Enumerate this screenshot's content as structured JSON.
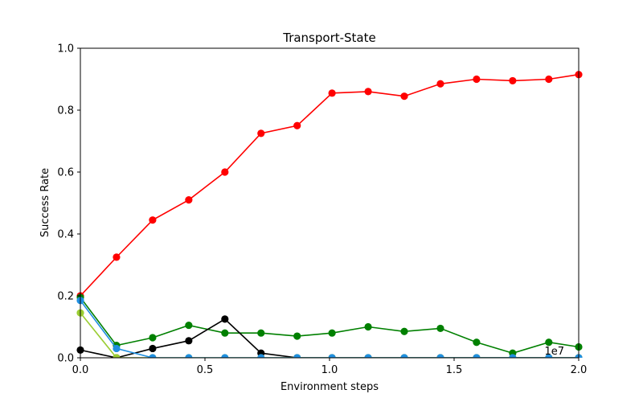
{
  "chart_data": {
    "type": "line",
    "title": "Transport-State",
    "xlabel": "Environment steps",
    "ylabel": "Success Rate",
    "x_offset_label": "1e7",
    "xlim": [
      0,
      2.0
    ],
    "ylim": [
      0,
      1.0
    ],
    "xticks": [
      "0.0",
      "0.5",
      "1.0",
      "1.5",
      "2.0"
    ],
    "yticks": [
      "0.0",
      "0.2",
      "0.4",
      "0.6",
      "0.8",
      "1.0"
    ],
    "grid": false,
    "series": [
      {
        "color": "#ff0000",
        "x": [
          0,
          0.145,
          0.29,
          0.435,
          0.58,
          0.725,
          0.87,
          1.01,
          1.155,
          1.3,
          1.445,
          1.59,
          1.735,
          1.88,
          2.0
        ],
        "values": [
          0.2,
          0.325,
          0.445,
          0.51,
          0.6,
          0.725,
          0.75,
          0.855,
          0.86,
          0.845,
          0.885,
          0.9,
          0.895,
          0.9,
          0.915
        ]
      },
      {
        "color": "#008000",
        "x": [
          0,
          0.145,
          0.29,
          0.435,
          0.58,
          0.725,
          0.87,
          1.01,
          1.155,
          1.3,
          1.445,
          1.59,
          1.735,
          1.88,
          2.0
        ],
        "values": [
          0.195,
          0.04,
          0.065,
          0.105,
          0.08,
          0.08,
          0.07,
          0.08,
          0.1,
          0.085,
          0.095,
          0.05,
          0.015,
          0.05,
          0.035
        ]
      },
      {
        "color": "#000000",
        "x": [
          0,
          0.145,
          0.29,
          0.435,
          0.58,
          0.725,
          0.87,
          1.01,
          1.155,
          1.3,
          1.445,
          1.59,
          1.735,
          1.88,
          2.0
        ],
        "values": [
          0.025,
          0.0,
          0.03,
          0.055,
          0.125,
          0.015,
          0.0,
          0.0,
          0.0,
          0.0,
          0.0,
          0.0,
          0.0,
          0.0,
          0.0
        ]
      },
      {
        "color": "#9acd32",
        "x": [
          0,
          0.145,
          0.29,
          0.435,
          0.58,
          0.725,
          0.87,
          1.01,
          1.155,
          1.3,
          1.445,
          1.59,
          1.735,
          1.88,
          2.0
        ],
        "values": [
          0.145,
          0.0,
          0.0,
          0.0,
          0.0,
          0.0,
          0.0,
          0.0,
          0.0,
          0.0,
          0.0,
          0.0,
          0.0,
          0.0,
          0.0
        ]
      },
      {
        "color": "#1f8fe0",
        "x": [
          0,
          0.145,
          0.29,
          0.435,
          0.58,
          0.725,
          0.87,
          1.01,
          1.155,
          1.3,
          1.445,
          1.59,
          1.735,
          1.88,
          2.0
        ],
        "values": [
          0.185,
          0.03,
          0.0,
          0.0,
          0.0,
          0.0,
          0.0,
          0.0,
          0.0,
          0.0,
          0.0,
          0.0,
          0.0,
          0.0,
          0.0
        ]
      }
    ]
  }
}
